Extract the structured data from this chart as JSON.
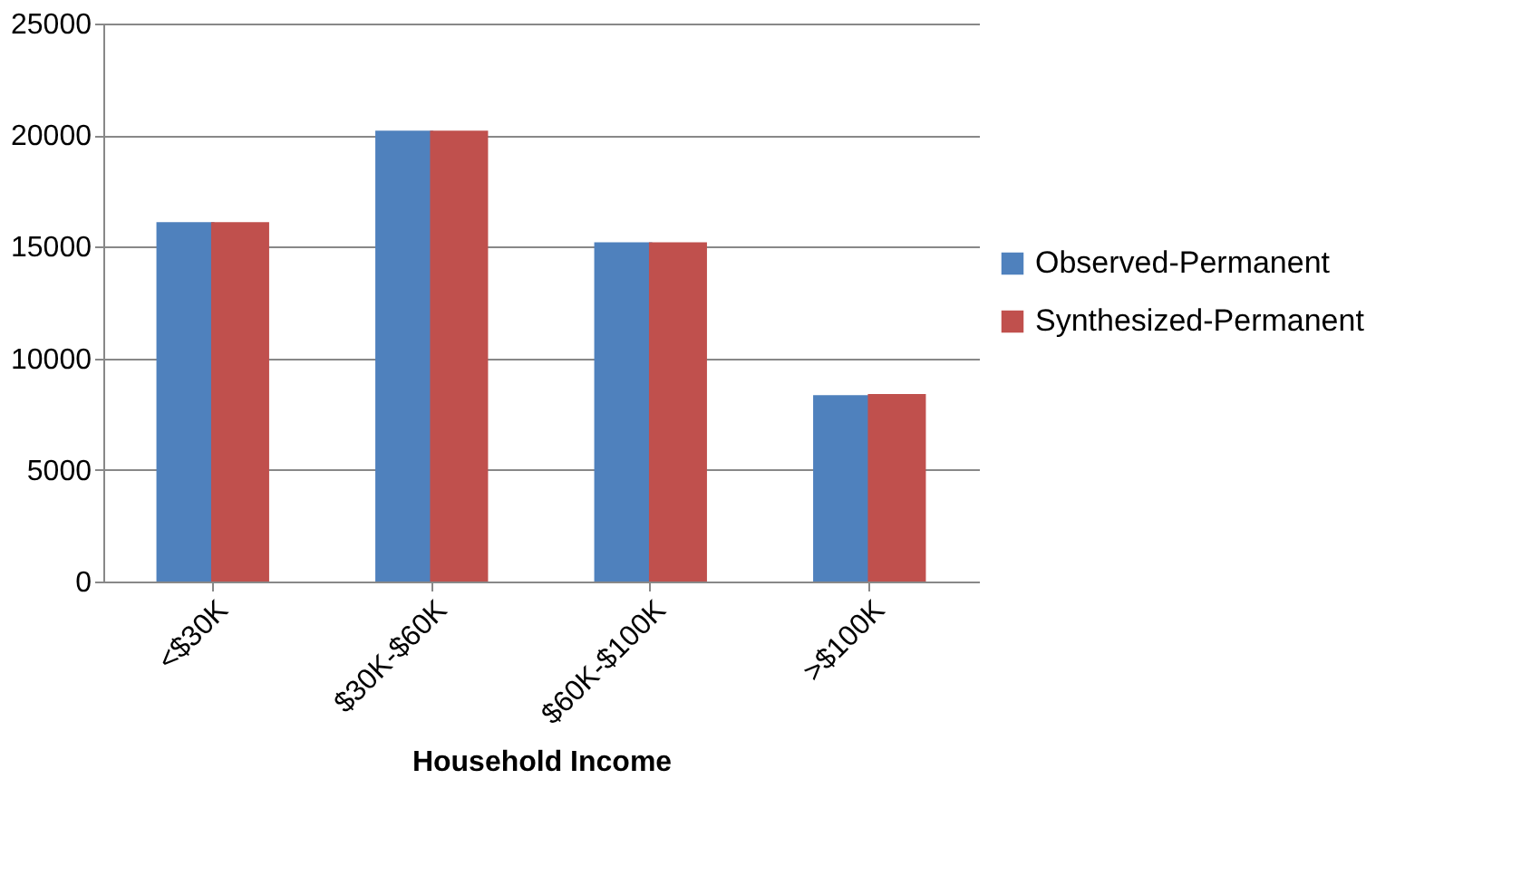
{
  "chart_data": {
    "type": "bar",
    "xlabel": "Household Income",
    "categories": [
      "<$30K",
      "$30K-$60K",
      "$60K-$100K",
      ">$100K"
    ],
    "series": [
      {
        "name": "Observed-Permanent",
        "color": "#4f81bd",
        "values": [
          16100,
          20200,
          15200,
          8350
        ]
      },
      {
        "name": "Synthesized-Permanent",
        "color": "#c0504d",
        "values": [
          16100,
          20200,
          15200,
          8400
        ]
      }
    ],
    "ylim": [
      0,
      25000
    ],
    "yticks": [
      0,
      5000,
      10000,
      15000,
      20000,
      25000
    ],
    "grid": "y",
    "legend": "right"
  }
}
